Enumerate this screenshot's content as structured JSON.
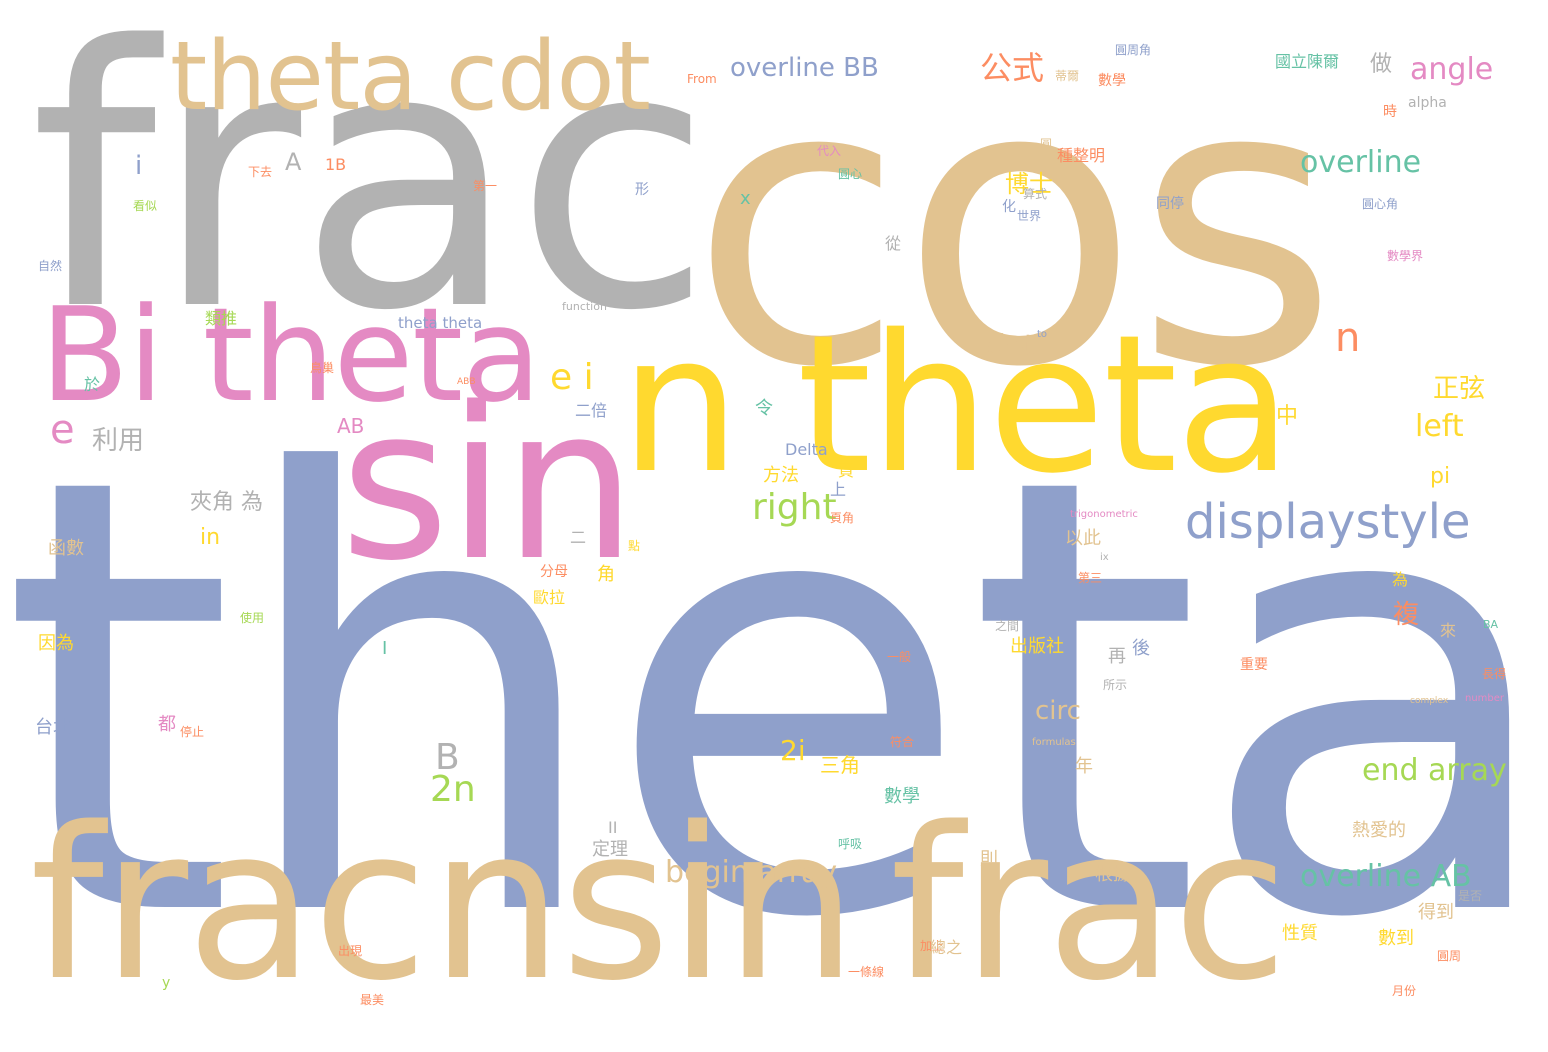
{
  "colors": {
    "tan": "#E2C390",
    "grey": "#B2B2B2",
    "blue": "#8FA0CB",
    "pink": "#E48AC3",
    "yellow": "#FFD92F",
    "green": "#A6D854",
    "teal": "#66C2A5",
    "orange": "#FC8D62",
    "background": "#FFFFFF"
  },
  "words": [
    "theta",
    "cos",
    "frac",
    "sin",
    "frac",
    "nsin",
    "frac",
    "n theta",
    "theta cdot",
    "Bi theta",
    "displaystyle",
    "overline BB",
    "angle",
    "overline",
    "cdot",
    "e i",
    "right",
    "overline AB",
    "begin array",
    "end array",
    "left",
    "circ",
    "2n",
    "2i",
    "B",
    "e",
    "n",
    "in",
    "pi",
    "i",
    "A",
    "x",
    "1B",
    "AB",
    "Delta",
    "I",
    "II",
    "alpha",
    "theta theta",
    "function",
    "From",
    "trigonometric",
    "formulas",
    "complex",
    "number",
    "ABB",
    "BA",
    "to",
    "ix",
    "y",
    "公式",
    "博士",
    "正弦",
    "利用",
    "夾角 為",
    "複",
    "方法",
    "三角",
    "出版社",
    "定理",
    "數學",
    "根據",
    "得到",
    "數到",
    "熱愛的",
    "性質",
    "台北",
    "函數",
    "因為",
    "類推",
    "歐拉",
    "令",
    "中",
    "做",
    "數學",
    "圓周角",
    "國立陳爾",
    "種整明",
    "頁",
    "上",
    "角",
    "為",
    "來",
    "後",
    "年",
    "再",
    "都",
    "則",
    "以此",
    "從",
    "二倍",
    "算式",
    "二",
    "於",
    "圓",
    "蒂爾",
    "加上",
    "頁角",
    "圓心角",
    "圓心",
    "代入",
    "世界",
    "同停",
    "數學界",
    "使用",
    "之間",
    "一般",
    "所示",
    "重要",
    "長得",
    "月份",
    "第一",
    "第三",
    "是否",
    "下去",
    "看似",
    "自然",
    "停止",
    "出現",
    "最美",
    "圓周",
    "呼吸",
    "總之",
    "一條線",
    "符合",
    "鳥巢",
    "形",
    "化",
    "分母",
    "時",
    "點"
  ]
}
